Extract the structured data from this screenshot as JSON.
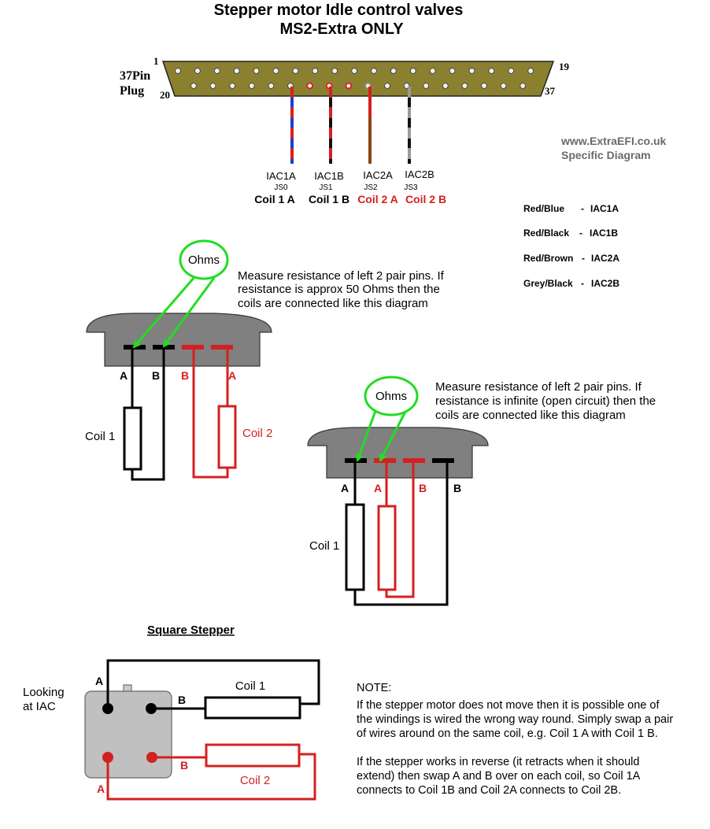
{
  "title": {
    "line1": "Stepper motor Idle control valves",
    "line2": "MS2-Extra ONLY"
  },
  "plug": {
    "label_line1": "37Pin",
    "label_line2": "Plug",
    "pin_1": "1",
    "pin_19": "19",
    "pin_20": "20",
    "pin_37": "37"
  },
  "wires": [
    {
      "signal": "IAC1A",
      "jumper": "JS0",
      "coil": "Coil 1 A"
    },
    {
      "signal": "IAC1B",
      "jumper": "JS1",
      "coil": "Coil 1 B"
    },
    {
      "signal": "IAC2A",
      "jumper": "JS2",
      "coil": "Coil 2 A"
    },
    {
      "signal": "IAC2B",
      "jumper": "JS3",
      "coil": "Coil 2 B"
    }
  ],
  "website": {
    "line1": "www.ExtraEFI.co.uk",
    "line2": "Specific Diagram"
  },
  "legend": [
    {
      "color": "Red/Blue",
      "sep": "-",
      "signal": "IAC1A"
    },
    {
      "color": "Red/Black",
      "sep": "-",
      "signal": "IAC1B"
    },
    {
      "color": "Red/Brown",
      "sep": "-",
      "signal": "IAC2A"
    },
    {
      "color": "Grey/Black",
      "sep": "-",
      "signal": "IAC2B"
    }
  ],
  "diagram1": {
    "ohms": "Ohms",
    "text": [
      "Measure resistance of left 2 pair pins. If",
      "resistance is approx 50 Ohms then the",
      "coils are connected like this diagram"
    ],
    "pin_labels": [
      "A",
      "B",
      "B",
      "A"
    ],
    "coil1": "Coil 1",
    "coil2": "Coil 2"
  },
  "diagram2": {
    "ohms": "Ohms",
    "text": [
      "Measure resistance of left 2 pair pins. If",
      "resistance is infinite (open circuit) then the",
      "coils are connected like this diagram"
    ],
    "pin_labels": [
      "A",
      "A",
      "B",
      "B"
    ],
    "coil1": "Coil 1"
  },
  "square": {
    "heading": "Square Stepper",
    "looking_line1": "Looking",
    "looking_line2": "at IAC",
    "labels": {
      "a_top": "A",
      "b_top": "B",
      "b_bottom": "B",
      "a_bottom": "A"
    },
    "coil1": "Coil 1",
    "coil2": "Coil 2"
  },
  "note": {
    "title": "NOTE:",
    "para1": [
      "If the stepper motor does not move then it is possible one of",
      "the windings is wired the wrong way round. Simply swap a pair",
      "of wires around on the same coil, e.g. Coil 1 A with Coil 1 B."
    ],
    "para2": [
      "If the stepper works in reverse (it retracts when it should",
      "extend) then swap A and B over on each coil, so Coil 1A",
      "connects to Coil 1B and Coil 2A connects to Coil 2B."
    ]
  },
  "colors": {
    "red": "#d42020",
    "green": "#22dd22",
    "plug_body": "#8b8030",
    "valve_grey": "#808080",
    "wire_blue": "#1a3fd0",
    "wire_brown": "#8b4513",
    "wire_grey": "#9a9a9a"
  }
}
